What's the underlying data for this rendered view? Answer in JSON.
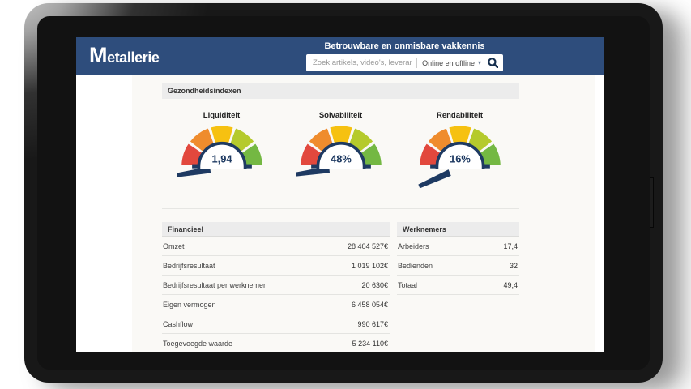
{
  "header": {
    "logo_initial": "M",
    "logo_rest": "etallerie",
    "tagline": "Betrouwbare en onmisbare vakkennis",
    "background_color": "#2e4d7c",
    "search": {
      "placeholder": "Zoek artikels, video's, leveran...",
      "scope_label": "Online en offline",
      "caret_icon": "▾"
    }
  },
  "health_indexes": {
    "section_title": "Gezondheidsindexen",
    "arc_color": "#1e3a62",
    "gauge_colors": [
      "#e2483d",
      "#ef8c2d",
      "#f6c111",
      "#b5ca2c",
      "#74b843"
    ],
    "gauges": [
      {
        "label": "Liquiditeit",
        "value": "1,94",
        "needle_deg": 7
      },
      {
        "label": "Solvabiliteit",
        "value": "48%",
        "needle_deg": 6
      },
      {
        "label": "Rendabiliteit",
        "value": "16%",
        "needle_deg": 22
      }
    ]
  },
  "tables": {
    "financieel": {
      "title": "Financieel",
      "rows": [
        {
          "label": "Omzet",
          "value": "28 404 527€"
        },
        {
          "label": "Bedrijfsresultaat",
          "value": "1 019 102€"
        },
        {
          "label": "Bedrijfsresultaat per werknemer",
          "value": "20 630€"
        },
        {
          "label": "Eigen vermogen",
          "value": "6 458 054€"
        },
        {
          "label": "Cashflow",
          "value": "990 617€"
        },
        {
          "label": "Toegevoegde waarde",
          "value": "5 234 110€"
        }
      ]
    },
    "werknemers": {
      "title": "Werknemers",
      "rows": [
        {
          "label": "Arbeiders",
          "value": "17,4"
        },
        {
          "label": "Bedienden",
          "value": "32"
        },
        {
          "label": "Totaal",
          "value": "49,4"
        }
      ]
    }
  }
}
